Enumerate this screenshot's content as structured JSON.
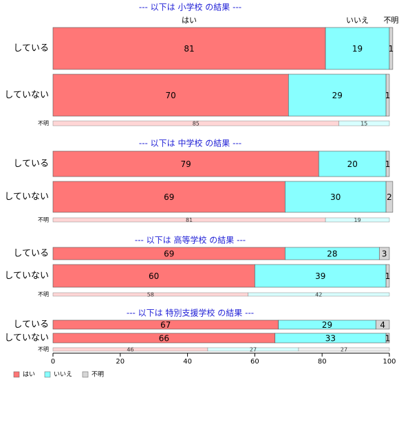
{
  "chart_data": {
    "type": "bar",
    "orientation": "horizontal-stacked",
    "xlim": [
      0,
      100
    ],
    "xticks": [
      "0",
      "20",
      "40",
      "60",
      "80",
      "100"
    ],
    "column_headers": [
      "はい",
      "いいえ",
      "不明"
    ],
    "legend": {
      "position": "bottom-left",
      "entries": [
        {
          "name": "はい",
          "color": "#ff7777"
        },
        {
          "name": "いいえ",
          "color": "#88ffff"
        },
        {
          "name": "不明",
          "color": "#d6d6d6"
        }
      ]
    },
    "small_colors": [
      "#ffd6d6",
      "#d8ffff",
      "#f0f0f0"
    ],
    "panels": [
      {
        "title": "--- 以下は 小学校 の結果 ---",
        "rows": [
          {
            "label": "している",
            "values": [
              81,
              19,
              1
            ]
          },
          {
            "label": "していない",
            "values": [
              70,
              29,
              1
            ]
          }
        ],
        "unknown": {
          "label": "不明",
          "values": [
            85,
            15
          ]
        }
      },
      {
        "title": "--- 以下は 中学校 の結果 ---",
        "rows": [
          {
            "label": "している",
            "values": [
              79,
              20,
              1
            ]
          },
          {
            "label": "していない",
            "values": [
              69,
              30,
              2
            ]
          }
        ],
        "unknown": {
          "label": "不明",
          "values": [
            81,
            19
          ]
        }
      },
      {
        "title": "--- 以下は 高等学校 の結果 ---",
        "rows": [
          {
            "label": "している",
            "values": [
              69,
              28,
              3
            ]
          },
          {
            "label": "していない",
            "values": [
              60,
              39,
              1
            ]
          }
        ],
        "unknown": {
          "label": "不明",
          "values": [
            58,
            42
          ]
        }
      },
      {
        "title": "--- 以下は 特別支援学校 の結果 ---",
        "rows": [
          {
            "label": "している",
            "values": [
              67,
              29,
              4
            ]
          },
          {
            "label": "していない",
            "values": [
              66,
              33,
              1
            ]
          }
        ],
        "unknown": {
          "label": "不明",
          "values": [
            46,
            27,
            27
          ]
        }
      }
    ]
  }
}
